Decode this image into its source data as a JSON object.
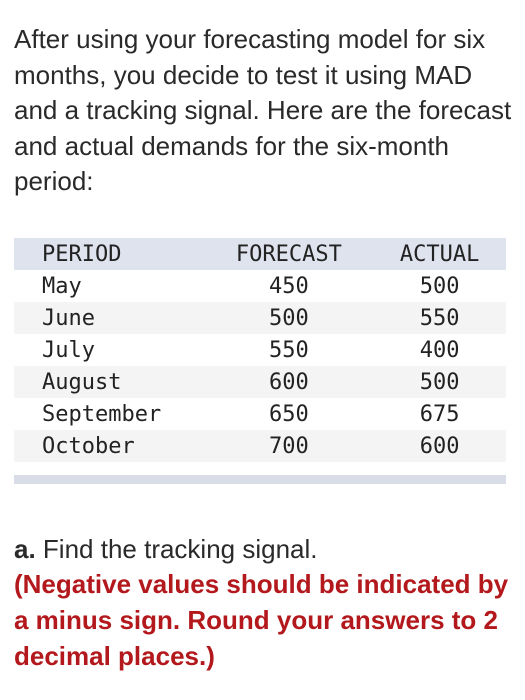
{
  "intro": "After using your forecasting model for six months, you decide to test it using MAD and a tracking signal. Here are the forecast and actual demands for the six-month period:",
  "table": {
    "headers": {
      "period": "PERIOD",
      "forecast": "FORECAST",
      "actual": "ACTUAL"
    },
    "rows": [
      {
        "period": "May",
        "forecast": "450",
        "actual": "500"
      },
      {
        "period": "June",
        "forecast": "500",
        "actual": "550"
      },
      {
        "period": "July",
        "forecast": "550",
        "actual": "400"
      },
      {
        "period": "August",
        "forecast": "600",
        "actual": "500"
      },
      {
        "period": "September",
        "forecast": "650",
        "actual": "675"
      },
      {
        "period": "October",
        "forecast": "700",
        "actual": "600"
      }
    ]
  },
  "question": {
    "label": "a.",
    "text": "Find the tracking signal.",
    "instruction": "(Negative values should be indicated by a minus sign. Round your answers to 2 decimal places.)"
  },
  "colors": {
    "instruction_red": "#b3181c",
    "header_bg": "#dfe3ee",
    "stripe_bg": "#f4f4f4"
  }
}
